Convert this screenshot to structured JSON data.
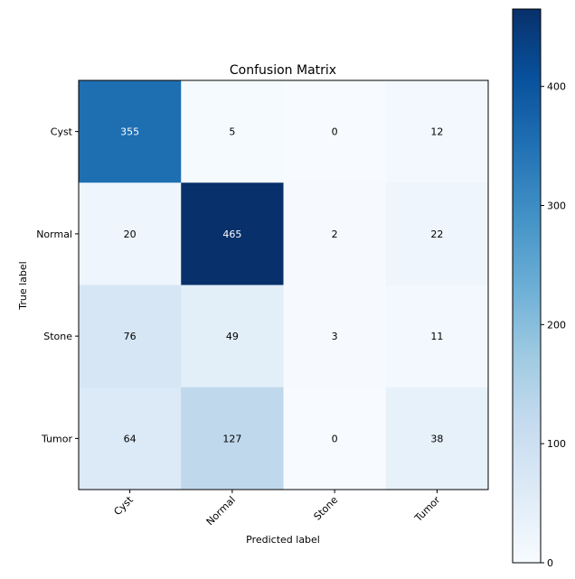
{
  "chart_data": {
    "type": "heatmap",
    "title": "Confusion Matrix",
    "xlabel": "Predicted label",
    "ylabel": "True label",
    "x_categories": [
      "Cyst",
      "Normal",
      "Stone",
      "Tumor"
    ],
    "y_categories": [
      "Cyst",
      "Normal",
      "Stone",
      "Tumor"
    ],
    "matrix": [
      [
        355,
        5,
        0,
        12
      ],
      [
        20,
        465,
        2,
        22
      ],
      [
        76,
        49,
        3,
        11
      ],
      [
        64,
        127,
        0,
        38
      ]
    ],
    "colormap": "Blues",
    "colorbar": {
      "range": [
        0,
        465
      ],
      "ticks": [
        0,
        100,
        200,
        300,
        400
      ]
    },
    "grid": false
  }
}
